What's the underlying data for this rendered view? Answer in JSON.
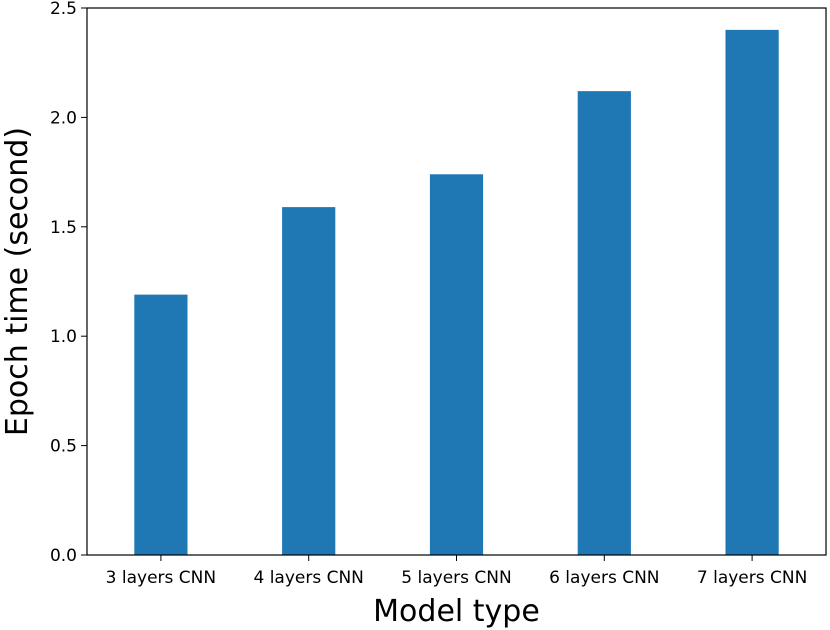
{
  "chart_data": {
    "type": "bar",
    "title": "",
    "xlabel": "Model type",
    "ylabel": "Epoch time (second)",
    "categories": [
      "3 layers CNN",
      "4 layers CNN",
      "5 layers CNN",
      "6 layers CNN",
      "7 layers CNN"
    ],
    "values": [
      1.19,
      1.59,
      1.74,
      2.12,
      2.4
    ],
    "ylim": [
      0,
      2.5
    ],
    "yticks": [
      "0.0",
      "0.5",
      "1.0",
      "1.5",
      "2.0",
      "2.5"
    ],
    "bar_color": "#1f77b4",
    "grid": false,
    "legend": "none"
  }
}
